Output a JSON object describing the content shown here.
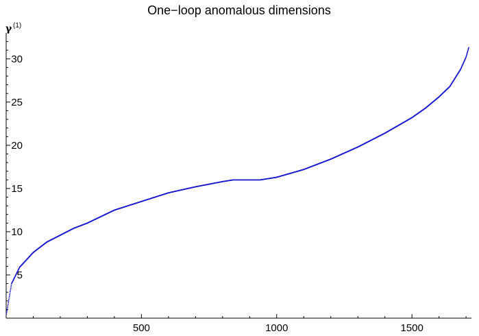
{
  "chart_data": {
    "type": "scatter",
    "title": "One−loop anomalous dimensions",
    "ylabel": "γ",
    "ylabel_superscript": "(1)",
    "xlabel": "",
    "xlim": [
      0,
      1720
    ],
    "ylim": [
      0,
      33
    ],
    "x_ticks": [
      500,
      1000,
      1500
    ],
    "y_ticks": [
      5,
      10,
      15,
      20,
      25,
      30
    ],
    "grid": false,
    "marker_color": "#1a1acc",
    "n_points": 1710,
    "curve_samples": {
      "x": [
        1,
        20,
        50,
        100,
        150,
        200,
        250,
        300,
        400,
        500,
        600,
        700,
        800,
        840,
        940,
        1000,
        1100,
        1200,
        1300,
        1400,
        1500,
        1550,
        1600,
        1640,
        1680,
        1700,
        1710
      ],
      "y": [
        0.5,
        4.0,
        5.9,
        7.6,
        8.8,
        9.6,
        10.4,
        11.0,
        12.5,
        13.5,
        14.5,
        15.2,
        15.8,
        16.0,
        16.0,
        16.3,
        17.2,
        18.4,
        19.8,
        21.4,
        23.2,
        24.3,
        25.6,
        26.8,
        28.8,
        30.2,
        31.3
      ]
    }
  }
}
